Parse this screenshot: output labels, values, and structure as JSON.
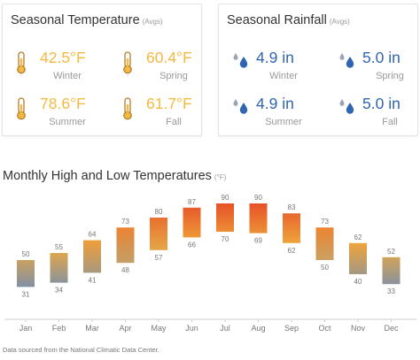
{
  "temperature": {
    "title": "Seasonal Temperature",
    "subtitle": "(Avgs)",
    "icon": "thermometer-icon",
    "value_color": "#f5b942",
    "items": [
      {
        "season": "Winter",
        "value": "42.5°F"
      },
      {
        "season": "Spring",
        "value": "60.4°F"
      },
      {
        "season": "Summer",
        "value": "78.6°F"
      },
      {
        "season": "Fall",
        "value": "61.7°F"
      }
    ]
  },
  "rainfall": {
    "title": "Seasonal Rainfall",
    "subtitle": "(Avgs)",
    "icon": "raindrops-icon",
    "value_color": "#2f65b3",
    "items": [
      {
        "season": "Winter",
        "value": "4.9 in"
      },
      {
        "season": "Spring",
        "value": "5.0 in"
      },
      {
        "season": "Summer",
        "value": "4.9 in"
      },
      {
        "season": "Fall",
        "value": "5.0 in"
      }
    ]
  },
  "chart_data": {
    "type": "bar",
    "title": "Monthly High and Low Temperatures",
    "subtitle": "(°F)",
    "categories": [
      "Jan",
      "Feb",
      "Mar",
      "Apr",
      "May",
      "Jun",
      "Jul",
      "Aug",
      "Sep",
      "Oct",
      "Nov",
      "Dec"
    ],
    "series": [
      {
        "name": "",
        "values": [
          50,
          55,
          64,
          73,
          80,
          87,
          90,
          90,
          83,
          73,
          62,
          52
        ]
      },
      {
        "name": "",
        "values": [
          31,
          34,
          41,
          48,
          57,
          66,
          70,
          69,
          62,
          50,
          40,
          33
        ]
      }
    ],
    "ylim": [
      20,
      100
    ],
    "grid": false,
    "colors": {
      "cool": "#7d8fa8",
      "warm": "#f0aa3c",
      "hot": "#e65228"
    }
  },
  "footnote": "Data sourced from the National Climatic Data Center."
}
